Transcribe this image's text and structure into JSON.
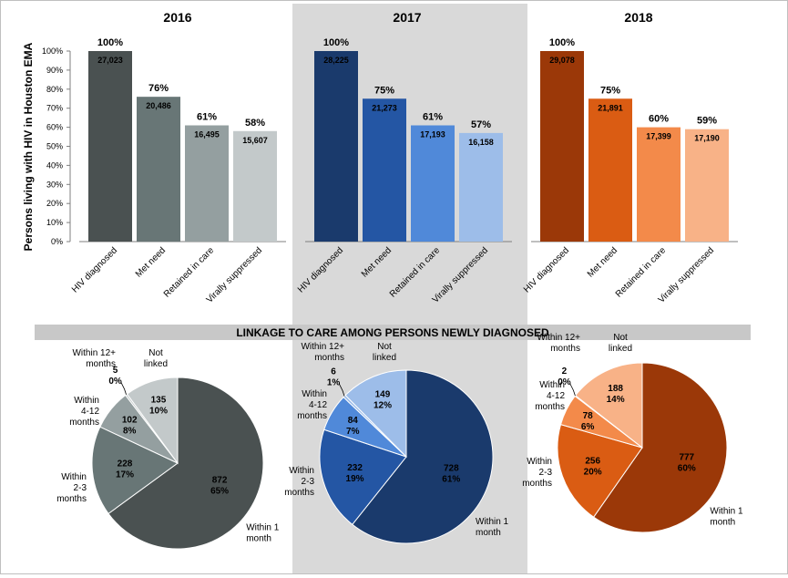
{
  "colors": {
    "y2016": [
      "#4a5151",
      "#687676",
      "#949fa0",
      "#c3c9ca"
    ],
    "y2017": [
      "#1a3a6c",
      "#2456a4",
      "#5089d9",
      "#9dbde9"
    ],
    "y2018": [
      "#9b3808",
      "#da5c13",
      "#f38a4a",
      "#f8b287"
    ],
    "highlight_bg": "#d9d9d9",
    "pie_banner_bg": "#c8c8c8"
  },
  "chart_data": [
    {
      "type": "bar",
      "title": "2016",
      "ylabel": "Persons living with HIV in Houston EMA",
      "ylim": [
        0,
        100
      ],
      "yticks": [
        "0%",
        "10%",
        "20%",
        "30%",
        "40%",
        "50%",
        "60%",
        "70%",
        "80%",
        "90%",
        "100%"
      ],
      "categories": [
        "HIV diagnosed",
        "Met need",
        "Retained in care",
        "Virally suppressed"
      ],
      "values": [
        100,
        76,
        61,
        58
      ],
      "pct_labels": [
        "100%",
        "76%",
        "61%",
        "58%"
      ],
      "count_labels": [
        "27,023",
        "20,486",
        "16,495",
        "15,607"
      ]
    },
    {
      "type": "bar",
      "title": "2017",
      "ylim": [
        0,
        100
      ],
      "categories": [
        "HIV diagnosed",
        "Met need",
        "Retained in care",
        "Virally suppressed"
      ],
      "values": [
        100,
        75,
        61,
        57
      ],
      "pct_labels": [
        "100%",
        "75%",
        "61%",
        "57%"
      ],
      "count_labels": [
        "28,225",
        "21,273",
        "17,193",
        "16,158"
      ]
    },
    {
      "type": "bar",
      "title": "2018",
      "ylim": [
        0,
        100
      ],
      "categories": [
        "HIV diagnosed",
        "Met need",
        "Retained in care",
        "Virally suppressed"
      ],
      "values": [
        100,
        75,
        60,
        59
      ],
      "pct_labels": [
        "100%",
        "75%",
        "60%",
        "59%"
      ],
      "count_labels": [
        "29,078",
        "21,891",
        "17,399",
        "17,190"
      ]
    },
    {
      "type": "pie",
      "title": "LINKAGE TO CARE AMONG PERSONS NEWLY DIAGNOSED",
      "year": "2016",
      "slices": [
        {
          "label": "Within 1 month",
          "value": 872,
          "pct": "65%"
        },
        {
          "label": "Within 2-3 months",
          "value": 228,
          "pct": "17%"
        },
        {
          "label": "Within 4-12 months",
          "value": 102,
          "pct": "8%"
        },
        {
          "label": "Within 12+ months",
          "value": 5,
          "pct": "0%"
        },
        {
          "label": "Not linked",
          "value": 135,
          "pct": "10%"
        }
      ]
    },
    {
      "type": "pie",
      "year": "2017",
      "slices": [
        {
          "label": "Within 1 month",
          "value": 728,
          "pct": "61%"
        },
        {
          "label": "Within 2-3 months",
          "value": 232,
          "pct": "19%"
        },
        {
          "label": "Within 4-12 months",
          "value": 84,
          "pct": "7%"
        },
        {
          "label": "Within 12+ months",
          "value": 6,
          "pct": "1%"
        },
        {
          "label": "Not linked",
          "value": 149,
          "pct": "12%"
        }
      ]
    },
    {
      "type": "pie",
      "year": "2018",
      "slices": [
        {
          "label": "Within 1 month",
          "value": 777,
          "pct": "60%"
        },
        {
          "label": "Within 2-3 months",
          "value": 256,
          "pct": "20%"
        },
        {
          "label": "Within 4-12 months",
          "value": 78,
          "pct": "6%"
        },
        {
          "label": "Within 12+ months",
          "value": 2,
          "pct": "0%"
        },
        {
          "label": "Not linked",
          "value": 188,
          "pct": "14%"
        }
      ]
    }
  ]
}
